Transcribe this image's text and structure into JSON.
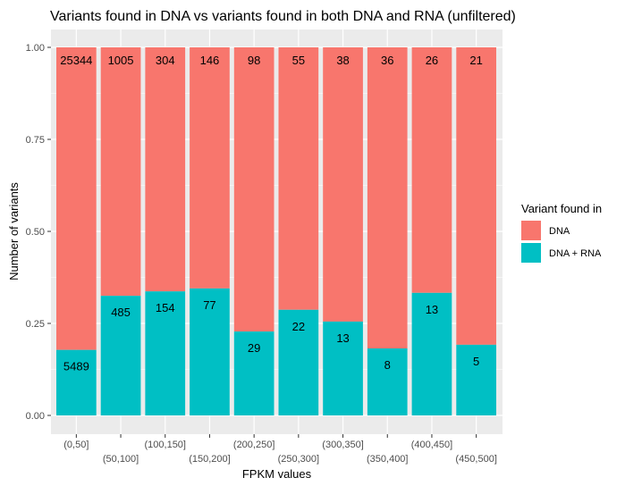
{
  "chart_data": {
    "type": "bar",
    "stacked": "fill",
    "title": "Variants found in DNA vs variants found in both DNA and RNA (unfiltered)",
    "xlabel": "FPKM values",
    "ylabel": "Number of variants",
    "ylim": [
      0,
      1
    ],
    "yticks": [
      "0.00",
      "0.25",
      "0.50",
      "0.75",
      "1.00"
    ],
    "grid": true,
    "categories": [
      "(0,50]",
      "(50,100]",
      "(100,150]",
      "(150,200]",
      "(200,250]",
      "(250,300]",
      "(300,350]",
      "(350,400]",
      "(400,450]",
      "(450,500]"
    ],
    "series": [
      {
        "name": "DNA",
        "color": "#F8766D",
        "counts": [
          25344,
          1005,
          304,
          146,
          98,
          55,
          38,
          36,
          26,
          21
        ],
        "labels": [
          "25344",
          "1005",
          "304",
          "146",
          "98",
          "55",
          "38",
          "36",
          "26",
          "21"
        ]
      },
      {
        "name": "DNA + RNA",
        "color": "#00BFC4",
        "fraction": [
          0.178,
          0.325,
          0.337,
          0.345,
          0.228,
          0.287,
          0.255,
          0.182,
          0.333,
          0.192
        ],
        "labels": [
          "5489",
          "485",
          "154",
          "77",
          "29",
          "22",
          "13",
          "8",
          "13",
          "5"
        ]
      }
    ],
    "legend": {
      "title": "Variant found in",
      "position": "right"
    }
  }
}
